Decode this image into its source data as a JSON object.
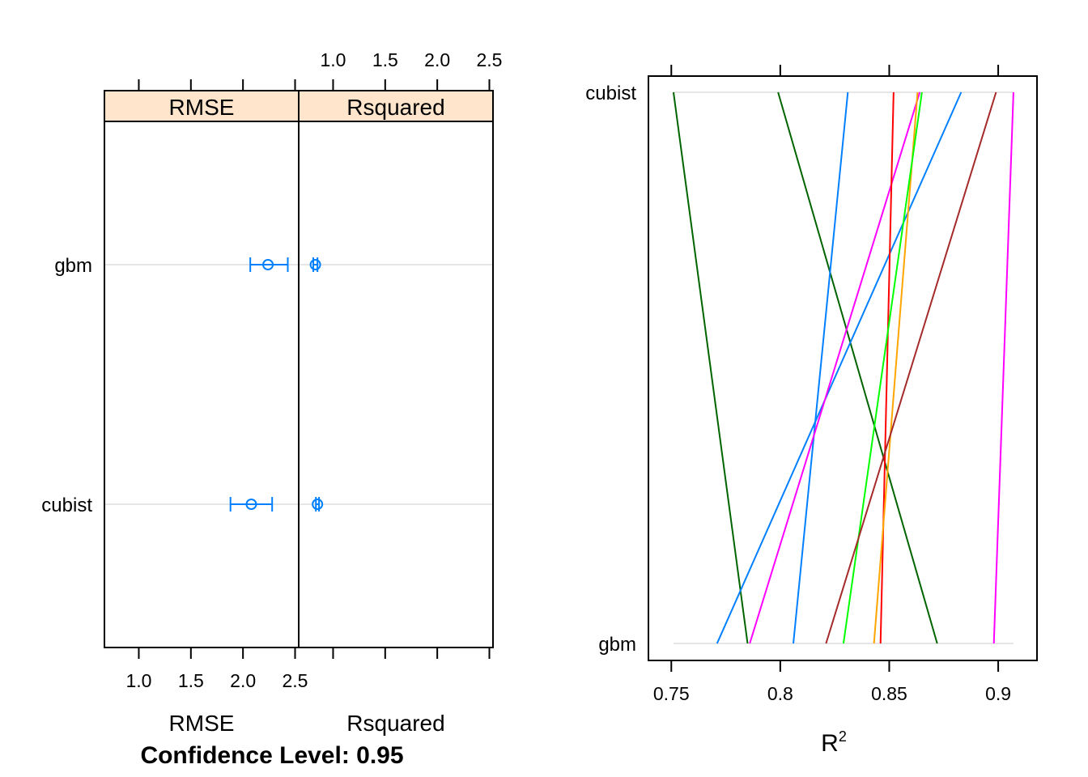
{
  "chart_data": [
    {
      "type": "dotplot-errorbar",
      "footer": "Confidence Level: 0.95",
      "categories": [
        "gbm",
        "cubist"
      ],
      "panels": [
        {
          "name": "RMSE",
          "strip_label": "RMSE",
          "axis_label": "RMSE",
          "xlim": [
            0.67,
            2.535
          ],
          "ticks": [
            1.0,
            1.5,
            2.0,
            2.5
          ],
          "tick_labels": [
            "1.0",
            "1.5",
            "2.0",
            "2.5"
          ],
          "tick_side": "bottom",
          "estimates": [
            {
              "category": "gbm",
              "estimate": 2.24,
              "lower": 2.07,
              "upper": 2.43
            },
            {
              "category": "cubist",
              "estimate": 2.08,
              "lower": 1.88,
              "upper": 2.28
            }
          ]
        },
        {
          "name": "Rsquared",
          "strip_label": "Rsquared",
          "axis_label": "Rsquared",
          "xlim": [
            0.67,
            2.535
          ],
          "ticks": [
            1.0,
            1.5,
            2.0,
            2.5
          ],
          "tick_labels": [
            "1.0",
            "1.5",
            "2.0",
            "2.5"
          ],
          "tick_side": "top",
          "estimates": [
            {
              "category": "gbm",
              "estimate": 0.83,
              "lower": 0.81,
              "upper": 0.85
            },
            {
              "category": "cubist",
              "estimate": 0.85,
              "lower": 0.835,
              "upper": 0.865
            }
          ]
        }
      ],
      "colors": {
        "points": "#0080ff",
        "reference_lines": "#e6e6e6",
        "strip_bg": "#ffe5cc"
      }
    },
    {
      "type": "parallel",
      "xlabel": "R",
      "xlabel_superscript": "2",
      "xlim": [
        0.7395,
        0.9178
      ],
      "ticks": [
        0.75,
        0.8,
        0.85,
        0.9
      ],
      "tick_labels": [
        "0.75",
        "0.8",
        "0.85",
        "0.9"
      ],
      "y_levels": [
        "gbm",
        "cubist"
      ],
      "ref_range": [
        0.751,
        0.907
      ],
      "lines": [
        {
          "gbm": 0.785,
          "cubist": 0.751,
          "color": "#006400"
        },
        {
          "gbm": 0.872,
          "cubist": 0.799,
          "color": "#006400"
        },
        {
          "gbm": 0.806,
          "cubist": 0.831,
          "color": "#0080ff"
        },
        {
          "gbm": 0.771,
          "cubist": 0.883,
          "color": "#0080ff"
        },
        {
          "gbm": 0.786,
          "cubist": 0.864,
          "color": "#ff00ff"
        },
        {
          "gbm": 0.898,
          "cubist": 0.907,
          "color": "#ff00ff"
        },
        {
          "gbm": 0.846,
          "cubist": 0.852,
          "color": "#ff0000"
        },
        {
          "gbm": 0.843,
          "cubist": 0.863,
          "color": "#ffa500"
        },
        {
          "gbm": 0.829,
          "cubist": 0.865,
          "color": "#00ff00"
        },
        {
          "gbm": 0.821,
          "cubist": 0.899,
          "color": "#a52a2a"
        }
      ]
    }
  ]
}
